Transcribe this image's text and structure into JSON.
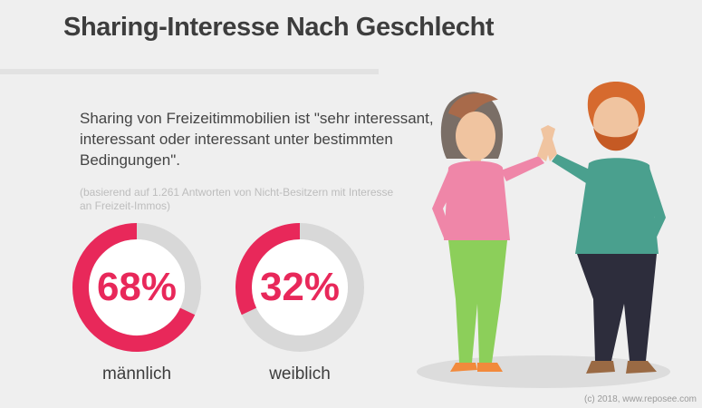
{
  "title": "Sharing-Interesse Nach Geschlecht",
  "description": "Sharing von Freizeitimmobilien ist \"sehr interessant, interessant oder interessant unter bestimmten Bedingungen\".",
  "note": "(basierend auf 1.261  Antworten von Nicht-Besitzern mit Interesse an Freizeit-Immos)",
  "credit": "(c) 2018, www.reposee.com",
  "colors": {
    "accent": "#e8285a",
    "track": "#d8d8d8",
    "inner": "#ffffff"
  },
  "chart_data": {
    "type": "pie",
    "charts": [
      {
        "category": "männlich",
        "value": 68,
        "value_label": "68%"
      },
      {
        "category": "weiblich",
        "value": 32,
        "value_label": "32%"
      }
    ]
  }
}
